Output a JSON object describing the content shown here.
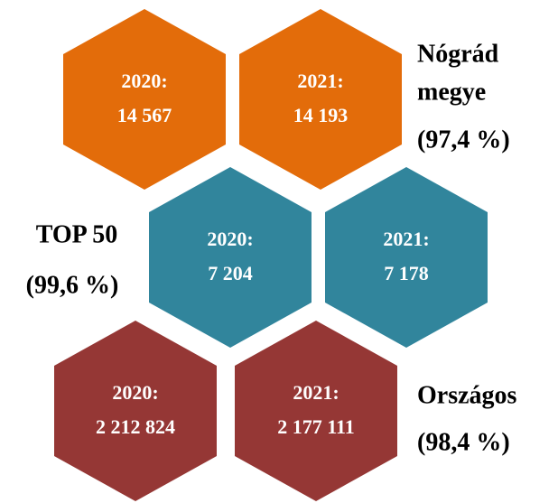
{
  "groups": [
    {
      "label": [
        "Nógrád",
        "megye"
      ],
      "ratio": "(97,4 %)",
      "hexagons": [
        {
          "year": "2020:",
          "value": "14 567"
        },
        {
          "year": "2021:",
          "value": "14 193"
        }
      ]
    },
    {
      "label": [
        "TOP 50"
      ],
      "ratio": "(99,6 %)",
      "hexagons": [
        {
          "year": "2020:",
          "value": "7 204"
        },
        {
          "year": "2021:",
          "value": "7 178"
        }
      ]
    },
    {
      "label": [
        "Országos"
      ],
      "ratio": "(98,4 %)",
      "hexagons": [
        {
          "year": "2020:",
          "value": "2 212 824"
        },
        {
          "year": "2021:",
          "value": "2 177 111"
        }
      ]
    }
  ]
}
